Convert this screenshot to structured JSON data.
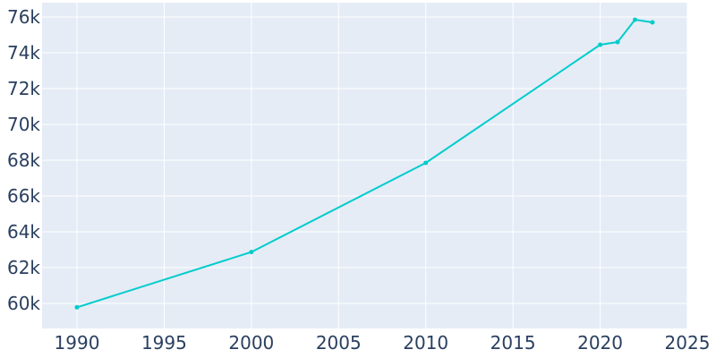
{
  "chart_data": {
    "type": "line",
    "x": [
      1990,
      2000,
      2010,
      2020,
      2021,
      2022,
      2023
    ],
    "series": [
      {
        "values": [
          59780,
          62870,
          67850,
          74450,
          74600,
          75850,
          75700
        ]
      }
    ],
    "xlim": [
      1988,
      2025
    ],
    "ylim": [
      58600,
      76800
    ],
    "x_ticks": [
      1990,
      1995,
      2000,
      2005,
      2010,
      2015,
      2020,
      2025
    ],
    "x_tick_labels": [
      "1990",
      "1995",
      "2000",
      "2005",
      "2010",
      "2015",
      "2020",
      "2025"
    ],
    "y_ticks": [
      60000,
      62000,
      64000,
      66000,
      68000,
      70000,
      72000,
      74000,
      76000
    ],
    "y_tick_labels": [
      "60k",
      "62k",
      "64k",
      "66k",
      "68k",
      "70k",
      "72k",
      "74k",
      "76k"
    ],
    "grid": true,
    "colors": {
      "line": "#00cccc",
      "plot_bg": "#e5ecf6",
      "grid": "#ffffff",
      "text": "#2a3f5f"
    }
  }
}
